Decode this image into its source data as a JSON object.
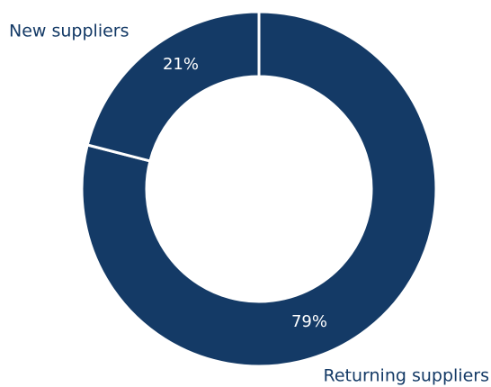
{
  "chart_data": {
    "type": "pie",
    "hole": true,
    "categories": [
      "Returning suppliers",
      "New suppliers"
    ],
    "values": [
      79,
      21
    ],
    "value_labels": [
      "79%",
      "21%"
    ],
    "color": "#143a66"
  }
}
